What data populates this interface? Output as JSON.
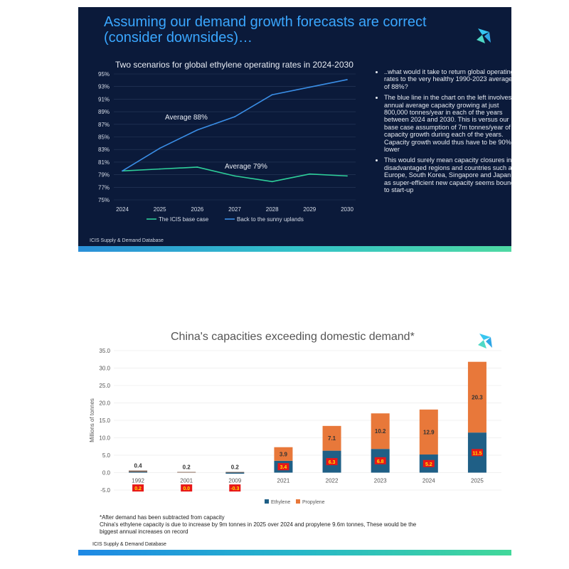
{
  "slide1": {
    "title_line1": "Assuming our demand growth forecasts are correct",
    "title_line2": "(consider downsides)…",
    "logo_icon": "icis-logo-icon",
    "source": "ICIS Supply & Demand Database",
    "bullets": [
      "..what would it take to return global operating rates to the very healthy 1990-2023 average of 88%?",
      "The blue line in the chart on the left involves annual average capacity growing at just 800,000 tonnes/year in each of the years between 2024 and 2030. This is versus our base case assumption of 7m tonnes/year of capacity growth during each of the years. Capacity growth would thus have to be 90% lower",
      "This would surely mean capacity closures in disadvantaged regions and countries such as Europe, South Korea, Singapore and Japan, as super-efficient new capacity seems bound to start-up"
    ]
  },
  "slide2": {
    "title": "China's capacities exceeding domestic demand*",
    "logo_icon": "icis-logo-icon",
    "footnote_line1": "*After demand has been subtracted from capacity",
    "footnote_line2": "China's ethylene capacity is due to increase by 9m tonnes in 2025 over 2024 and propylene 9.6m tonnes, These would be the",
    "footnote_line3": "biggest  annual increases on record",
    "source": "ICIS Supply & Demand Database"
  },
  "chart_data": [
    {
      "type": "line",
      "title": "Two scenarios for global ethylene operating rates in 2024-2030",
      "x": [
        "2024",
        "2025",
        "2026",
        "2027",
        "2028",
        "2029",
        "2030"
      ],
      "ylim": [
        75,
        95
      ],
      "yticks": [
        "95%",
        "93%",
        "91%",
        "89%",
        "87%",
        "85%",
        "83%",
        "81%",
        "79%",
        "77%",
        "75%"
      ],
      "series": [
        {
          "name": "The ICIS base case",
          "color": "#2ecf9a",
          "values": [
            79.6,
            79.9,
            80.2,
            78.8,
            77.9,
            79.1,
            78.8
          ]
        },
        {
          "name": "Back to the sunny uplands",
          "color": "#3a8ee6",
          "values": [
            79.6,
            83.2,
            86.1,
            88.2,
            91.7,
            92.9,
            94.1
          ]
        }
      ],
      "annotations": [
        "Average 88%",
        "Average 79%"
      ],
      "legend": "bottom",
      "grid": true
    },
    {
      "type": "bar",
      "title": "China's capacities exceeding domestic demand*",
      "ylabel": "Millions of tonnes",
      "ylim": [
        -5,
        35
      ],
      "yticks": [
        "35.0",
        "30.0",
        "25.0",
        "20.0",
        "15.0",
        "10.0",
        "5.0",
        "0.0",
        "-5.0"
      ],
      "categories": [
        "1992",
        "2001",
        "2009",
        "2021",
        "2022",
        "2023",
        "2024",
        "2025"
      ],
      "stacked": true,
      "series": [
        {
          "name": "Ethylene",
          "color": "#1f5f86",
          "values": [
            0.2,
            0.0,
            -0.3,
            3.4,
            6.3,
            6.8,
            5.2,
            11.5
          ],
          "labels": [
            "0.2",
            "0.0",
            "-0.3",
            "3.4",
            "6.3",
            "6.8",
            "5.2",
            "11.5"
          ]
        },
        {
          "name": "Propylene",
          "color": "#e8783a",
          "values": [
            0.4,
            0.2,
            0.2,
            3.9,
            7.1,
            10.2,
            12.9,
            20.3
          ],
          "labels": [
            "0.4",
            "0.2",
            "0.2",
            "3.9",
            "7.1",
            "10.2",
            "12.9",
            "20.3"
          ]
        }
      ],
      "legend": "bottom",
      "grid": true
    }
  ]
}
